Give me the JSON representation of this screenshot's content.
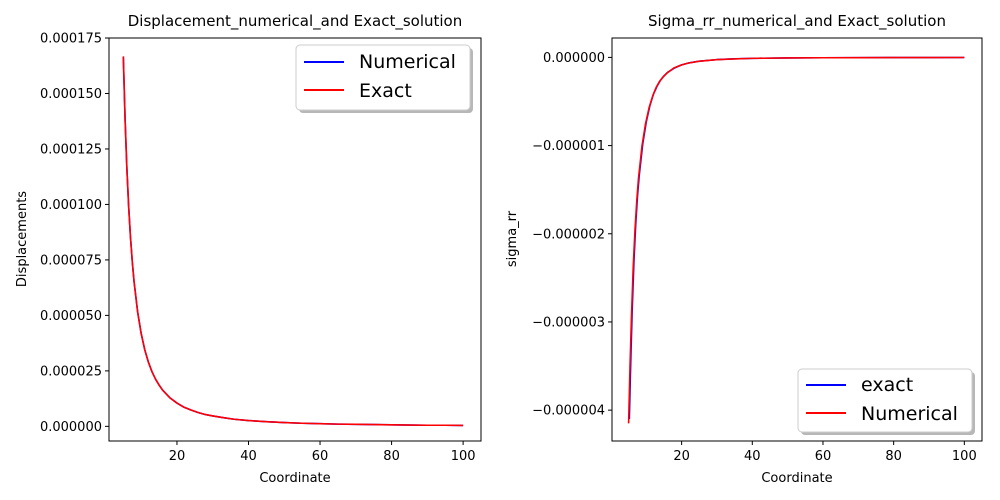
{
  "chart_data": [
    {
      "type": "line",
      "title": "Displacement_numerical_and Exact_solution",
      "xlabel": "Coordinate",
      "ylabel": "Displacements",
      "xlim": [
        1,
        105
      ],
      "ylim": [
        -6.6e-06,
        0.000175
      ],
      "xticks": [
        20,
        40,
        60,
        80,
        100
      ],
      "xtick_labels": [
        "20",
        "40",
        "60",
        "80",
        "100"
      ],
      "yticks": [
        0,
        2.5e-05,
        5e-05,
        7.5e-05,
        0.0001,
        0.000125,
        0.00015,
        0.000175
      ],
      "ytick_labels": [
        "0.000000",
        "0.000025",
        "0.000050",
        "0.000075",
        "0.000100",
        "0.000125",
        "0.000150",
        "0.000175"
      ],
      "grid": false,
      "legend_position": "upper right",
      "series": [
        {
          "name": "Numerical",
          "color": "#0000ff",
          "x": [
            5,
            5.5,
            6,
            6.5,
            7,
            7.5,
            8,
            9,
            10,
            11,
            12,
            13,
            14,
            15,
            16,
            18,
            20,
            22,
            24,
            26,
            28,
            30,
            33,
            36,
            40,
            45,
            50,
            55,
            60,
            65,
            70,
            75,
            80,
            85,
            90,
            95,
            100
          ],
          "y": [
            0.0001667,
            0.0001382,
            0.0001162,
            9.9e-05,
            8.54e-05,
            7.44e-05,
            6.53e-05,
            5.16e-05,
            4.18e-05,
            3.45e-05,
            2.9e-05,
            2.47e-05,
            2.13e-05,
            1.86e-05,
            1.63e-05,
            1.29e-05,
            1.05e-05,
            8.6e-06,
            7.3e-06,
            6.2e-06,
            5.3e-06,
            4.7e-06,
            3.9e-06,
            3.2e-06,
            2.6e-06,
            2.1e-06,
            1.7e-06,
            1.4e-06,
            1.2e-06,
            1e-06,
            9e-07,
            8e-07,
            7e-07,
            6e-07,
            5e-07,
            5e-07,
            4e-07
          ]
        },
        {
          "name": "Exact",
          "color": "#ff0000",
          "x": [
            5,
            5.5,
            6,
            6.5,
            7,
            7.5,
            8,
            9,
            10,
            11,
            12,
            13,
            14,
            15,
            16,
            18,
            20,
            22,
            24,
            26,
            28,
            30,
            33,
            36,
            40,
            45,
            50,
            55,
            60,
            65,
            70,
            75,
            80,
            85,
            90,
            95,
            100
          ],
          "y": [
            0.0001667,
            0.0001382,
            0.0001162,
            9.9e-05,
            8.54e-05,
            7.44e-05,
            6.53e-05,
            5.16e-05,
            4.18e-05,
            3.45e-05,
            2.9e-05,
            2.47e-05,
            2.13e-05,
            1.86e-05,
            1.63e-05,
            1.29e-05,
            1.05e-05,
            8.6e-06,
            7.3e-06,
            6.2e-06,
            5.3e-06,
            4.7e-06,
            3.9e-06,
            3.2e-06,
            2.6e-06,
            2.1e-06,
            1.7e-06,
            1.4e-06,
            1.2e-06,
            1e-06,
            9e-07,
            8e-07,
            7e-07,
            6e-07,
            5e-07,
            5e-07,
            4e-07
          ]
        }
      ]
    },
    {
      "type": "line",
      "title": "Sigma_rr_numerical_and Exact_solution",
      "xlabel": "Coordinate",
      "ylabel": "sigma_rr",
      "xlim": [
        0.3,
        105
      ],
      "ylim": [
        -4.35e-06,
        2.2e-07
      ],
      "xticks": [
        20,
        40,
        60,
        80,
        100
      ],
      "xtick_labels": [
        "20",
        "40",
        "60",
        "80",
        "100"
      ],
      "yticks": [
        0,
        -1e-06,
        -2e-06,
        -3e-06,
        -4e-06
      ],
      "ytick_labels": [
        "0.000000",
        "−0.000001",
        "−0.000002",
        "−0.000003",
        "−0.000004"
      ],
      "grid": false,
      "legend_position": "lower right",
      "series": [
        {
          "name": "exact",
          "color": "#0000ff",
          "x": [
            5.2,
            5.6,
            6,
            6.5,
            7,
            7.5,
            8,
            9,
            10,
            11,
            12,
            13,
            14,
            15,
            16,
            18,
            20,
            22,
            25,
            30,
            35,
            40,
            50,
            60,
            70,
            80,
            90,
            100
          ],
          "y": [
            -4.1e-06,
            -3.45e-06,
            -2.88e-06,
            -2.32e-06,
            -1.9e-06,
            -1.58e-06,
            -1.34e-06,
            -9.8e-07,
            -7.3e-07,
            -5.5e-07,
            -4.2e-07,
            -3.3e-07,
            -2.6e-07,
            -2.1e-07,
            -1.7e-07,
            -1.2e-07,
            -8.5e-08,
            -6.3e-08,
            -4.3e-08,
            -2.5e-08,
            -1.6e-08,
            -1.1e-08,
            -6e-09,
            -4e-09,
            -3e-09,
            -2e-09,
            -1.5e-09,
            -1e-09
          ]
        },
        {
          "name": "Numerical",
          "color": "#ff0000",
          "x": [
            5,
            5.4,
            5.8,
            6.3,
            6.8,
            7.3,
            7.8,
            8.8,
            9.8,
            10.8,
            11.8,
            12.8,
            13.8,
            14.8,
            15.8,
            17.8,
            19.8,
            21.8,
            24.8,
            29.8,
            34.8,
            39.8,
            49.8,
            59.8,
            69.8,
            79.8,
            89.8,
            100
          ],
          "y": [
            -4.15e-06,
            -3.5e-06,
            -2.95e-06,
            -2.38e-06,
            -1.96e-06,
            -1.63e-06,
            -1.37e-06,
            -1e-06,
            -7.5e-07,
            -5.7e-07,
            -4.4e-07,
            -3.4e-07,
            -2.7e-07,
            -2.2e-07,
            -1.8e-07,
            -1.2e-07,
            -8.8e-08,
            -6.5e-08,
            -4.4e-08,
            -2.6e-08,
            -1.7e-08,
            -1.1e-08,
            -6e-09,
            -4e-09,
            -3e-09,
            -2e-09,
            -1.5e-09,
            -1e-09
          ]
        }
      ]
    }
  ]
}
